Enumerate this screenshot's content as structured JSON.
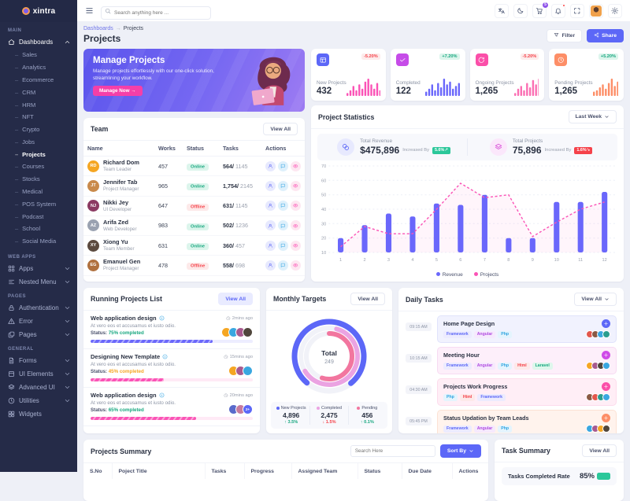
{
  "brand": {
    "name": "xintra"
  },
  "topbar": {
    "search_placeholder": "Search anything here ...",
    "actions": [
      {
        "icon": "translate"
      },
      {
        "icon": "moon"
      },
      {
        "icon": "cart",
        "badge": "5",
        "badge_color": "#8e54e9"
      },
      {
        "icon": "bell",
        "dot": "#fb4242"
      },
      {
        "icon": "expand"
      },
      {
        "icon": "avatar"
      },
      {
        "icon": "gear"
      }
    ]
  },
  "sidebar": {
    "sections": [
      {
        "label": "MAIN",
        "items": [
          {
            "label": "Dashboards",
            "icon": "home",
            "state": "expanded",
            "children": [
              "Sales",
              "Analytics",
              "Ecommerce",
              "CRM",
              "HRM",
              "NFT",
              "Crypto",
              "Jobs",
              "Projects",
              "Courses",
              "Stocks",
              "Medical",
              "POS System",
              "Podcast",
              "School",
              "Social Media"
            ],
            "active_child": "Projects"
          }
        ]
      },
      {
        "label": "WEB APPS",
        "items": [
          {
            "label": "Apps",
            "icon": "grid",
            "state": "collapsed"
          },
          {
            "label": "Nested Menu",
            "icon": "menu",
            "state": "collapsed"
          }
        ]
      },
      {
        "label": "PAGES",
        "items": [
          {
            "label": "Authentication",
            "icon": "lock",
            "state": "collapsed"
          },
          {
            "label": "Error",
            "icon": "alert",
            "state": "collapsed"
          },
          {
            "label": "Pages",
            "icon": "pages",
            "state": "collapsed"
          }
        ]
      },
      {
        "label": "GENERAL",
        "items": [
          {
            "label": "Forms",
            "icon": "file",
            "state": "collapsed"
          },
          {
            "label": "UI Elements",
            "icon": "box",
            "state": "collapsed"
          },
          {
            "label": "Advanced UI",
            "icon": "layers",
            "state": "collapsed"
          },
          {
            "label": "Utilities",
            "icon": "clock",
            "state": "collapsed"
          },
          {
            "label": "Widgets",
            "icon": "widget",
            "state": "none"
          }
        ]
      }
    ]
  },
  "header": {
    "breadcrumb": [
      "Dashboards",
      "Projects"
    ],
    "title": "Projects",
    "filter_label": "Filter",
    "share_label": "Share"
  },
  "banner": {
    "title": "Manage Projects",
    "text": "Manage projects effortlessly with our one-click solution, streamlining your workflow.",
    "cta": "Manage Now →"
  },
  "stat_cards": [
    {
      "label": "New Projects",
      "value": "432",
      "change": "-5.20%",
      "trend": "down",
      "icon": "kanban",
      "icon_color": "#5c67f7",
      "spark_color": "#fb53b6",
      "sparkline": [
        2,
        4,
        7,
        4,
        8,
        5,
        10,
        12,
        8,
        5,
        9,
        4
      ]
    },
    {
      "label": "Completed",
      "value": "122",
      "change": "+7.20%",
      "trend": "up",
      "icon": "check",
      "icon_color": "#c64ce8",
      "spark_color": "#6a67fb",
      "sparkline": [
        3,
        5,
        8,
        4,
        9,
        6,
        12,
        8,
        10,
        5,
        7,
        9
      ]
    },
    {
      "label": "Ongoing Projects",
      "value": "1,265",
      "change": "-5.20%",
      "trend": "down",
      "icon": "refresh",
      "icon_color": "#fb4fa9",
      "spark_color": "#fb6fb3",
      "sparkline": [
        2,
        5,
        7,
        4,
        9,
        6,
        11,
        8,
        12,
        6,
        4,
        8
      ]
    },
    {
      "label": "Pending Projects",
      "value": "1,265",
      "change": "+5.20%",
      "trend": "up",
      "icon": "clock",
      "icon_color": "#fd8e67",
      "spark_color": "#fd8e67",
      "sparkline": [
        3,
        4,
        6,
        8,
        5,
        9,
        12,
        7,
        10,
        5,
        8,
        6
      ]
    }
  ],
  "team": {
    "title": "Team",
    "view_all": "View All",
    "columns": [
      "Name",
      "Works",
      "Status",
      "Tasks",
      "Actions"
    ],
    "members": [
      {
        "name": "Richard Dom",
        "role": "Team Leader",
        "works": "457",
        "status": "Online",
        "tasks_done": "564/",
        "tasks_total": "1145",
        "avatar_color": "#f5a623",
        "initials": "RD"
      },
      {
        "name": "Jennifer Tab",
        "role": "Project Manager",
        "works": "965",
        "status": "Online",
        "tasks_done": "1,754/",
        "tasks_total": "2145",
        "avatar_color": "#c98a4b",
        "initials": "JT"
      },
      {
        "name": "Nikki Jey",
        "role": "UI Developer",
        "works": "647",
        "status": "Offline",
        "tasks_done": "631/",
        "tasks_total": "1145",
        "avatar_color": "#8b3a62",
        "initials": "NJ"
      },
      {
        "name": "Arifa Zed",
        "role": "Web Developer",
        "works": "983",
        "status": "Online",
        "tasks_done": "502/",
        "tasks_total": "1236",
        "avatar_color": "#9aa2b1",
        "initials": "AZ"
      },
      {
        "name": "Xiong Yu",
        "role": "Team Member",
        "works": "631",
        "status": "Online",
        "tasks_done": "360/",
        "tasks_total": "457",
        "avatar_color": "#5b4a3f",
        "initials": "XY"
      },
      {
        "name": "Emanuel Gen",
        "role": "Project Manager",
        "works": "478",
        "status": "Offline",
        "tasks_done": "558/",
        "tasks_total": "698",
        "avatar_color": "#b0713f",
        "initials": "EG"
      }
    ]
  },
  "project_statistics": {
    "title": "Project Statistics",
    "range": "Last Week",
    "totals": [
      {
        "label": "Total Revenue",
        "value": "$475,896",
        "note": "Increased By",
        "badge": "5.6%",
        "badge_dir": "up",
        "badge_color": "#2bc79a",
        "icon": "coins",
        "icon_bg": "#e7e9fe",
        "icon_fg": "#5c67f7"
      },
      {
        "label": "Total Projects",
        "value": "75,896",
        "note": "Increased By",
        "badge": "1.6%",
        "badge_dir": "down",
        "badge_color": "#f5424a",
        "icon": "layers",
        "icon_bg": "#fbe7fb",
        "icon_fg": "#d84fd8"
      }
    ]
  },
  "running_projects": {
    "title": "Running Projects List",
    "view_all": "View All",
    "items": [
      {
        "title": "Web application design",
        "time": "2mins ago",
        "desc": "At vero eos et accusamus et iusto odio.",
        "status_label": "Status:",
        "status": "75% completed",
        "status_color": "#17a77f",
        "bar_color": "#6a67fb",
        "progress": 75,
        "avatars": [
          "#f5a623",
          "#3aa7e0",
          "#a85a8f",
          "#50463c"
        ],
        "extra": ""
      },
      {
        "title": "Designing New Template",
        "time": "15mins ago",
        "desc": "At vero eos et accusamus et iusto odio.",
        "status_label": "Status:",
        "status": "45% completed",
        "status_color": "#f5a623",
        "bar_color": "#fb53b6",
        "progress": 45,
        "avatars": [
          "#f5a623",
          "#a85a8f",
          "#3aa7e0"
        ],
        "extra": ""
      },
      {
        "title": "Web application design",
        "time": "20mins ago",
        "desc": "At vero eos et accusamus et iusto odio.",
        "status_label": "Status:",
        "status": "65% completed",
        "status_color": "#17a77f",
        "bar_color": "#fb53b6",
        "progress": 65,
        "avatars": [
          "#5a6acb",
          "#c77a9e"
        ],
        "extra": "2+"
      }
    ]
  },
  "monthly_targets": {
    "title": "Monthly Targets",
    "view_all": "View All"
  },
  "daily_tasks": {
    "title": "Daily Tasks",
    "view_all": "View All",
    "tag_colors": {
      "Framework": {
        "bg": "#ecebfe",
        "fg": "#5c67f7"
      },
      "Angular": {
        "bg": "#f6e9fd",
        "fg": "#b04ae0"
      },
      "Php": {
        "bg": "#e4f4fd",
        "fg": "#2fa3e0"
      },
      "Html": {
        "bg": "#fde9e9",
        "fg": "#f5424a"
      },
      "Laravel": {
        "bg": "#def7ec",
        "fg": "#17a77f"
      }
    },
    "items": [
      {
        "time": "09:15 AM",
        "title": "Home Page Design",
        "tags": [
          "Framework",
          "Angular",
          "Php"
        ],
        "accent": "#5c67f7",
        "bg": "#f1f2fe",
        "border": "#e0e3fb",
        "avatars": [
          "#e2574c",
          "#8a5a44",
          "#3aa7e0",
          "#2a9d8f"
        ]
      },
      {
        "time": "10:15 AM",
        "title": "Meeting Hour",
        "tags": [
          "Framework",
          "Angular",
          "Php",
          "Html",
          "Laravel"
        ],
        "accent": "#cf4be8",
        "bg": "#fdeffa",
        "border": "#f7dbf2",
        "avatars": [
          "#f5a623",
          "#a85a8f",
          "#50463c",
          "#3aa7e0"
        ]
      },
      {
        "time": "04:30 AM",
        "title": "Projects Work Progress",
        "tags": [
          "Php",
          "Html",
          "Framework"
        ],
        "accent": "#fb4fa9",
        "bg": "#ffeef6",
        "border": "#fddcec",
        "avatars": [
          "#8a5a44",
          "#e2574c",
          "#2a9d8f",
          "#3aa7e0"
        ]
      },
      {
        "time": "05:45 PM",
        "title": "Status Updation by Team Leads",
        "tags": [
          "Framework",
          "Angular",
          "Php"
        ],
        "accent": "#fd8e67",
        "bg": "#fff3ed",
        "border": "#fce2d4",
        "avatars": [
          "#3aa7e0",
          "#a85a8f",
          "#f5a623",
          "#50463c"
        ]
      }
    ]
  },
  "projects_summary": {
    "title": "Projects Summary",
    "search_placeholder": "Search Here",
    "sort_by": "Sort By",
    "columns": [
      "S.No",
      "Poject Title",
      "Tasks",
      "Progress",
      "Assigned Team",
      "Status",
      "Due Date",
      "Actions"
    ]
  },
  "task_summary": {
    "title": "Task Summary",
    "view_all": "View All",
    "rate_label": "Tasks Completed Rate",
    "rate_value": "85%"
  },
  "chart_data": [
    {
      "type": "bar+line",
      "title": "Project Statistics",
      "x": [
        1,
        2,
        3,
        4,
        5,
        6,
        7,
        8,
        9,
        10,
        11,
        12
      ],
      "yticks": [
        10,
        20,
        30,
        40,
        50,
        60,
        70
      ],
      "ylim": [
        10,
        70
      ],
      "grid": true,
      "legend_position": "bottom",
      "series": [
        {
          "name": "Revenue",
          "type": "bar",
          "color": "#6a67fb",
          "values": [
            20,
            29,
            37,
            35,
            44,
            43,
            50,
            20,
            20,
            45,
            45,
            52
          ]
        },
        {
          "name": "Projects",
          "type": "line",
          "style": "dashed",
          "color": "#fb53b6",
          "values": [
            14,
            28,
            23,
            23,
            40,
            58,
            48,
            50,
            21,
            31,
            40,
            45
          ]
        }
      ]
    },
    {
      "type": "donut",
      "title": "Monthly Targets",
      "center_label": "Total",
      "center_value": "249",
      "rings": [
        {
          "name": "New Projects",
          "value": "4,896",
          "change": "3.5%",
          "trend": "up",
          "trend_color": "#17a77f",
          "color": "#5c67f7",
          "pct": 78
        },
        {
          "name": "Completed",
          "value": "2,475",
          "change": "1.5%",
          "trend": "down",
          "trend_color": "#f5424a",
          "color": "#eba3e2",
          "pct": 62
        },
        {
          "name": "Pending",
          "value": "456",
          "change": "0.1%",
          "trend": "up",
          "trend_color": "#17a77f",
          "color": "#f2769f",
          "pct": 55
        }
      ]
    }
  ]
}
